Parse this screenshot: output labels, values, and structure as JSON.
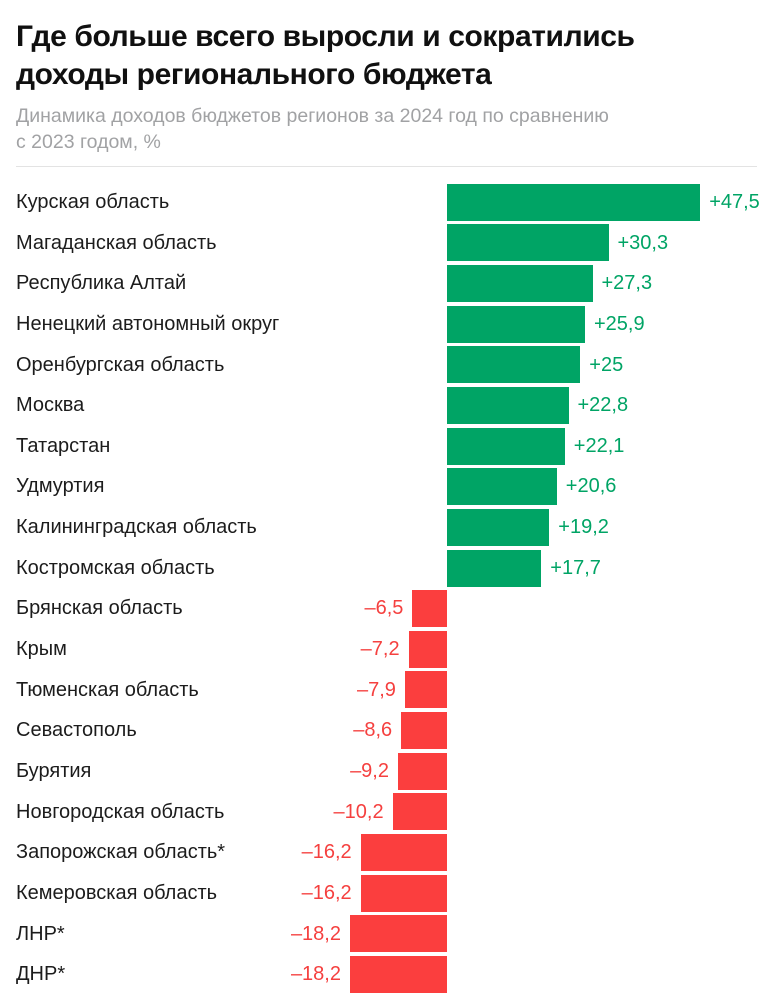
{
  "header": {
    "title_line1": "Где больше всего выросли и сократились",
    "title_line2": "доходы регионального бюджета",
    "subtitle_line1": "Динамика доходов бюджетов регионов за 2024 год по сравнению",
    "subtitle_line2": "с 2023 годом, %"
  },
  "colors": {
    "positive_bar": "#00a465",
    "positive_text": "#00a465",
    "negative_bar": "#fb3e3e",
    "negative_text": "#f5403f",
    "label_text": "#1c1c1c",
    "subtitle_text": "#a1a2a4",
    "divider": "#e3e3e3"
  },
  "chart_data": {
    "type": "bar",
    "orientation": "horizontal",
    "title": "Где больше всего выросли и сократились доходы регионального бюджета",
    "subtitle": "Динамика доходов бюджетов регионов за 2024 год по сравнению с 2023 годом, %",
    "unit": "%",
    "xlim": [
      -18.2,
      47.5
    ],
    "grid": false,
    "legend": false,
    "categories": [
      "Курская область",
      "Магаданская область",
      "Республика Алтай",
      "Ненецкий автономный округ",
      "Оренбургская область",
      "Москва",
      "Татарстан",
      "Удмуртия",
      "Калининградская область",
      "Костромская область",
      "Брянская область",
      "Крым",
      "Тюменская область",
      "Севастополь",
      "Бурятия",
      "Новгородская область",
      "Запорожская область*",
      "Кемеровская область",
      "ЛНР*",
      "ДНР*"
    ],
    "values": [
      47.5,
      30.3,
      27.3,
      25.9,
      25,
      22.8,
      22.1,
      20.6,
      19.2,
      17.7,
      -6.5,
      -7.2,
      -7.9,
      -8.6,
      -9.2,
      -10.2,
      -16.2,
      -16.2,
      -18.2,
      -18.2
    ],
    "value_labels": [
      "+47,5",
      "+30,3",
      "+27,3",
      "+25,9",
      "+25",
      "+22,8",
      "+22,1",
      "+20,6",
      "+19,2",
      "+17,7",
      "–6,5",
      "–7,2",
      "–7,9",
      "–8,6",
      "–9,2",
      "–10,2",
      "–16,2",
      "–16,2",
      "–18,2",
      "–18,2"
    ]
  }
}
